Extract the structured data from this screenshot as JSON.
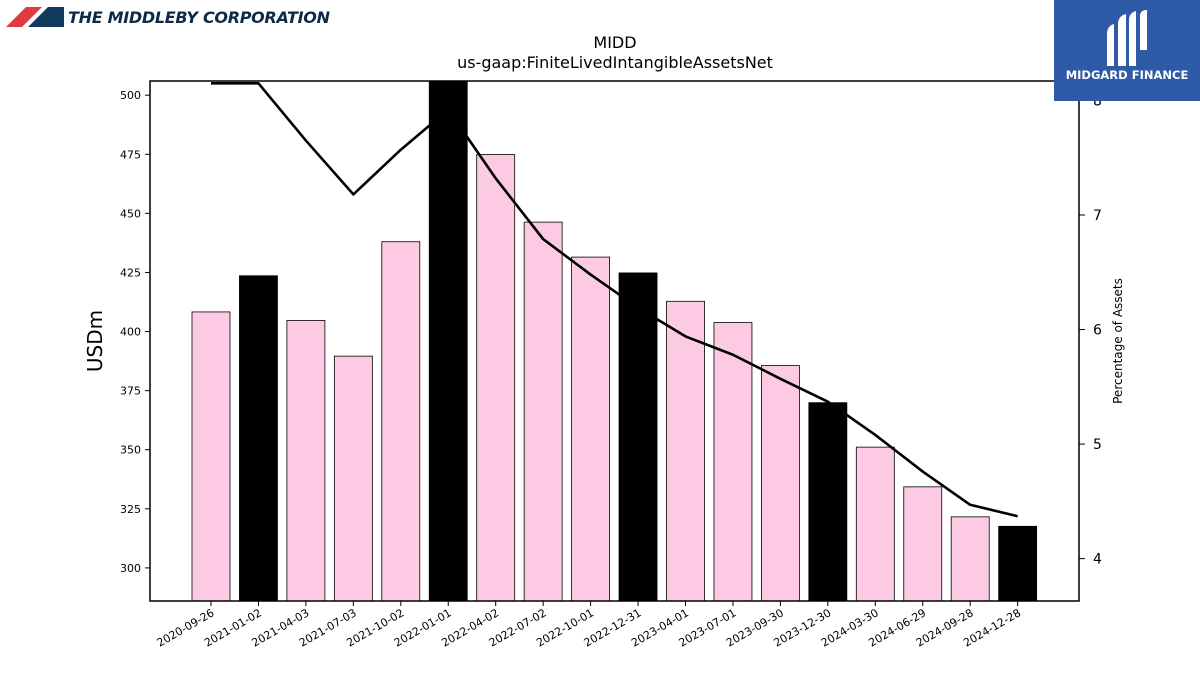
{
  "header": {
    "company_name": "THE MIDDLEBY CORPORATION",
    "brand_name": "MIDGARD FINANCE"
  },
  "chart_data": {
    "type": "bar",
    "title": "MIDD",
    "subtitle": "us-gaap:FiniteLivedIntangibleAssetsNet",
    "ylabel": "USDm",
    "y2label": "Percentage of Assets",
    "ylim": [
      286,
      506
    ],
    "y2lim": [
      3.63,
      8.17
    ],
    "yticks": [
      300,
      325,
      350,
      375,
      400,
      425,
      450,
      475,
      500
    ],
    "y2ticks": [
      4,
      5,
      6,
      7,
      8
    ],
    "categories": [
      "2020-09-26",
      "2021-01-02",
      "2021-04-03",
      "2021-07-03",
      "2021-10-02",
      "2022-01-01",
      "2022-04-02",
      "2022-07-02",
      "2022-10-01",
      "2022-12-31",
      "2023-04-01",
      "2023-07-01",
      "2023-09-30",
      "2023-12-30",
      "2024-03-30",
      "2024-06-29",
      "2024-09-28",
      "2024-12-28"
    ],
    "series": [
      {
        "type": "bar",
        "values": [
          408.3,
          423.6,
          404.7,
          389.6,
          438.0,
          507.0,
          474.9,
          446.3,
          431.5,
          424.8,
          412.8,
          403.8,
          385.6,
          369.9,
          351.1,
          334.3,
          321.6,
          317.6
        ],
        "highlight": [
          false,
          true,
          false,
          false,
          false,
          true,
          false,
          false,
          false,
          true,
          false,
          false,
          false,
          true,
          false,
          false,
          false,
          true
        ]
      },
      {
        "type": "line",
        "axis": "right",
        "values": [
          8.15,
          8.15,
          7.65,
          7.18,
          7.57,
          7.92,
          7.32,
          6.79,
          6.48,
          6.19,
          5.94,
          5.78,
          5.57,
          5.37,
          5.08,
          4.76,
          4.47,
          4.37
        ]
      }
    ],
    "colors": {
      "bar": "#fccbe3",
      "bar_highlight": "#000000",
      "line": "#000000"
    },
    "grid": false
  }
}
